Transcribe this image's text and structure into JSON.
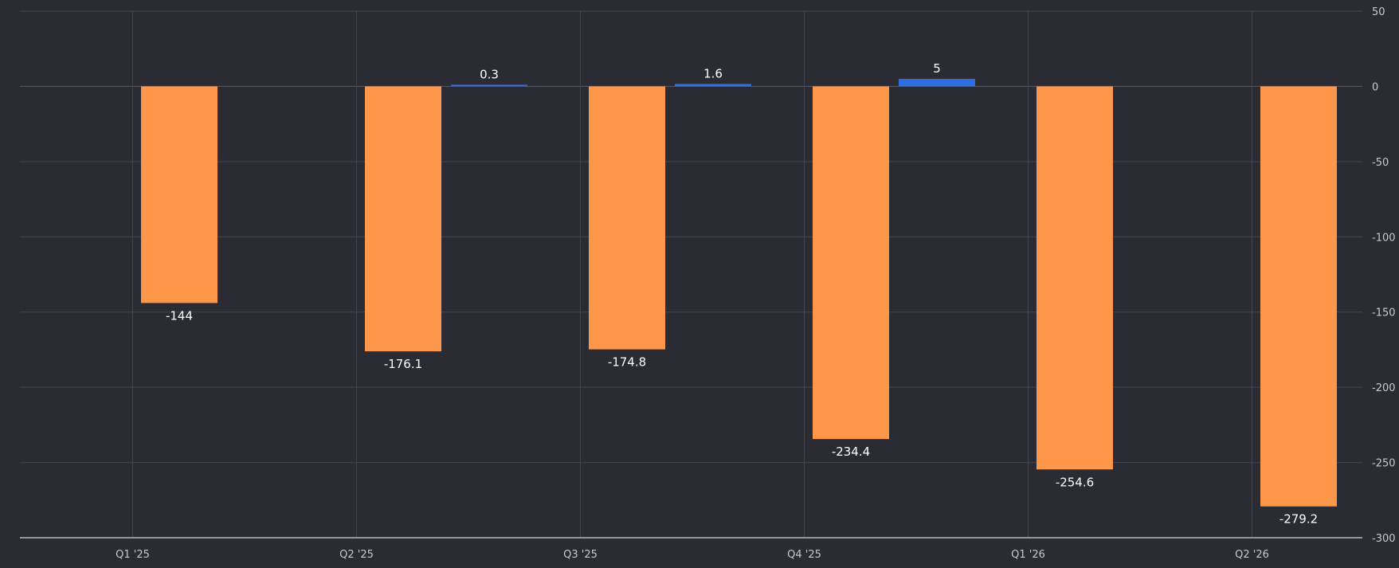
{
  "chart_data": {
    "type": "bar",
    "categories": [
      "Q1 '25",
      "Q2 '25",
      "Q3 '25",
      "Q4 '25",
      "Q1 '26",
      "Q2 '26"
    ],
    "series": [
      {
        "color": "#ff974a",
        "values": [
          -144,
          -176.1,
          -174.8,
          -234.4,
          -254.6,
          -279.2
        ]
      },
      {
        "color": "#2f6fe4",
        "values": [
          null,
          null,
          0.3,
          1.6,
          5,
          null
        ]
      }
    ],
    "data_labels": {
      "series0": [
        "-144",
        "-176.1",
        "-174.8",
        "-234.4",
        "-254.6",
        "-279.2"
      ],
      "series1": [
        "",
        "",
        "0.3",
        "1.6",
        "5",
        ""
      ]
    },
    "y_ticks": [
      50,
      0,
      -50,
      -100,
      -150,
      -200,
      -250,
      -300
    ],
    "y_tick_labels": [
      "50",
      "0",
      "-50",
      "-100",
      "-150",
      "-200",
      "-250",
      "-300"
    ],
    "ylim": [
      -300,
      50
    ],
    "y_axis_position": "right",
    "grid": true,
    "legend": "none",
    "title": "",
    "xlabel": "",
    "ylabel": ""
  }
}
